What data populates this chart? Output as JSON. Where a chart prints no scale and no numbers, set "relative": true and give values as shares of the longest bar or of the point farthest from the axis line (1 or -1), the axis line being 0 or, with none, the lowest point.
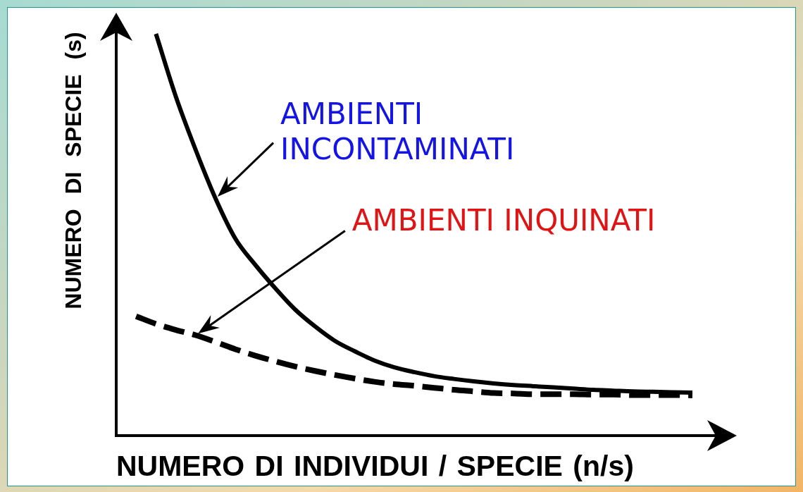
{
  "chart_data": {
    "type": "line",
    "relative": true,
    "xlabel": "NUMERO DI INDIVIDUI / SPECIE (n/s)",
    "ylabel": "NUMERO DI SPECIE (s)",
    "categories": [
      null,
      null,
      null,
      null,
      null,
      null,
      null,
      null,
      null,
      null,
      null,
      null,
      null,
      null,
      null,
      null,
      null,
      null,
      null,
      null,
      null,
      null,
      null,
      null,
      null,
      null,
      null,
      null,
      null,
      null
    ],
    "series": [
      {
        "name": "AMBIENTI INCONTAMINATI",
        "color": "#000000",
        "line_style": "solid",
        "values": [
          null,
          null,
          1.0,
          0.844,
          0.711,
          0.59,
          0.49,
          0.425,
          0.367,
          0.314,
          0.272,
          0.236,
          0.21,
          0.187,
          0.17,
          0.158,
          0.148,
          0.141,
          0.135,
          0.13,
          0.126,
          0.123,
          0.12,
          0.117,
          0.114,
          0.112,
          0.11,
          0.109,
          0.108,
          0.107
        ]
      },
      {
        "name": "AMBIENTI INQUINATI",
        "color": "#000000",
        "line_style": "dashed",
        "values": [
          null,
          0.297,
          0.278,
          0.263,
          0.25,
          0.233,
          0.215,
          0.199,
          0.185,
          0.172,
          0.161,
          0.151,
          0.142,
          0.134,
          0.128,
          0.124,
          0.119,
          0.114,
          0.11,
          0.106,
          0.105,
          0.103,
          0.103,
          0.103,
          0.102,
          0.102,
          0.101,
          0.101,
          0.101,
          0.1
        ]
      }
    ]
  }
}
